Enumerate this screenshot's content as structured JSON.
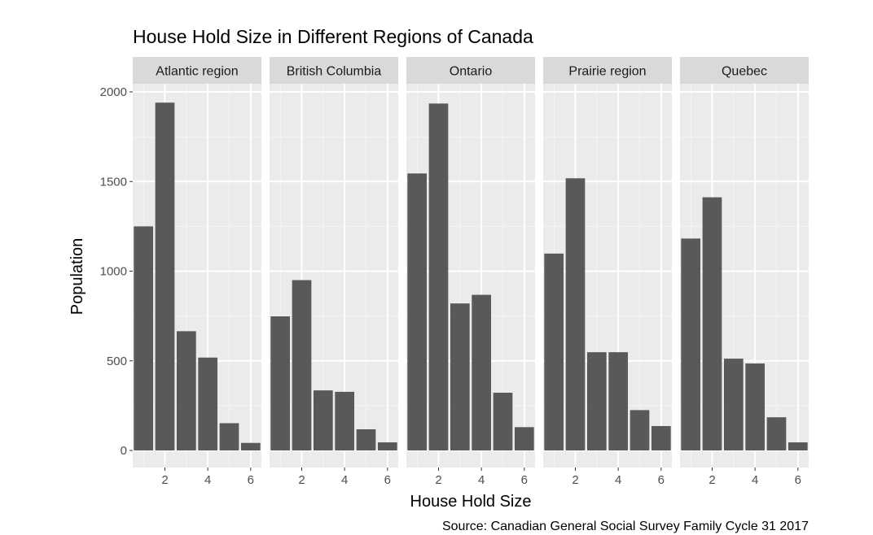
{
  "chart_data": {
    "type": "bar",
    "title": "House Hold Size in Different Regions of Canada",
    "xlabel": "House Hold Size",
    "ylabel": "Population",
    "caption": "Source: Canadian General Social Survey Family Cycle 31 2017",
    "x": [
      1,
      2,
      3,
      4,
      5,
      6
    ],
    "xlim": [
      0.5,
      6.5
    ],
    "ylim": [
      0,
      2000
    ],
    "x_ticks": [
      2,
      4,
      6
    ],
    "y_ticks": [
      0,
      500,
      1000,
      1500,
      2000
    ],
    "x_tick_labels": [
      "2",
      "4",
      "6"
    ],
    "y_tick_labels": [
      "0",
      "500",
      "1000",
      "1500",
      "2000"
    ],
    "grid": true,
    "facets": [
      {
        "name": "Atlantic region",
        "values": [
          1250,
          1940,
          665,
          518,
          152,
          42
        ]
      },
      {
        "name": "British Columbia",
        "values": [
          748,
          950,
          335,
          327,
          118,
          45
        ]
      },
      {
        "name": "Ontario",
        "values": [
          1545,
          1935,
          820,
          868,
          322,
          130
        ]
      },
      {
        "name": "Prairie region",
        "values": [
          1098,
          1518,
          548,
          548,
          225,
          136
        ]
      },
      {
        "name": "Quebec",
        "values": [
          1182,
          1412,
          512,
          485,
          185,
          45
        ]
      }
    ],
    "colors": {
      "bar": "#595959",
      "panel_background": "#ebebeb",
      "strip_background": "#d9d9d9",
      "grid_major": "#ffffff",
      "grid_minor": "#f5f5f5"
    }
  }
}
